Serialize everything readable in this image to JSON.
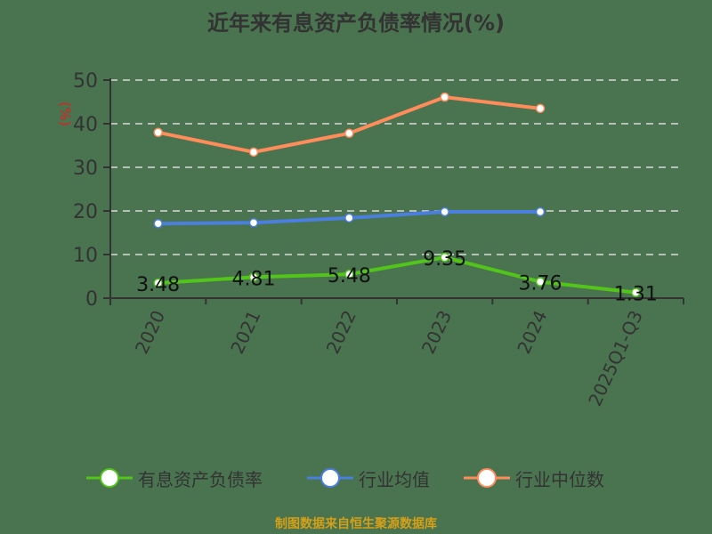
{
  "title": "近年来有息资产负债率情况(%)",
  "y_unit": "(%)",
  "footer": "制图数据来自恒生聚源数据库",
  "colors": {
    "debt_ratio": "#52c41a",
    "industry_avg": "#4a7fe0",
    "industry_median": "#ff8c5a",
    "background": "#4a7350",
    "grid": "#d9d9d9",
    "axis": "#333333",
    "unit_label": "#e02020",
    "footer": "#d4a017"
  },
  "legend": [
    {
      "name": "有息资产负债率",
      "color": "#52c41a"
    },
    {
      "name": "行业均值",
      "color": "#4a7fe0"
    },
    {
      "name": "行业中位数",
      "color": "#ff8c5a"
    }
  ],
  "chart_data": {
    "type": "line",
    "title": "近年来有息资产负债率情况(%)",
    "xlabel": "",
    "ylabel": "(%)",
    "ylim": [
      0,
      50
    ],
    "yticks": [
      0,
      10,
      20,
      30,
      40,
      50
    ],
    "grid": true,
    "legend_position": "bottom",
    "categories": [
      "2020",
      "2021",
      "2022",
      "2023",
      "2024",
      "2025Q1-Q3"
    ],
    "series": [
      {
        "name": "有息资产负债率",
        "values": [
          3.48,
          4.81,
          5.48,
          9.35,
          3.76,
          1.31
        ],
        "labels": [
          "3.48",
          "4.81",
          "5.48",
          "9.35",
          "3.76",
          "1.31"
        ]
      },
      {
        "name": "行业均值",
        "values": [
          17.1,
          17.3,
          18.4,
          19.8,
          19.8,
          null
        ]
      },
      {
        "name": "行业中位数",
        "values": [
          38.0,
          33.5,
          37.8,
          46.1,
          43.5,
          null
        ]
      }
    ]
  }
}
